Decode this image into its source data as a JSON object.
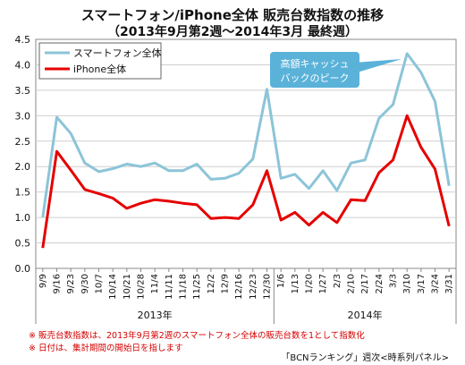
{
  "header": {
    "title": "スマートフォン/iPhone全体 販売台数指数の推移",
    "subtitle": "（2013年9月第2週〜2014年3月 最終週）"
  },
  "chart_data": {
    "type": "line",
    "categories": [
      "9/9",
      "9/16",
      "9/23",
      "9/30",
      "10/7",
      "10/14",
      "10/21",
      "10/28",
      "11/4",
      "11/11",
      "11/18",
      "11/25",
      "12/2",
      "12/9",
      "12/16",
      "12/23",
      "12/30",
      "1/6",
      "1/13",
      "1/20",
      "1/27",
      "2/3",
      "2/10",
      "2/17",
      "2/24",
      "3/3",
      "3/10",
      "3/17",
      "3/24",
      "3/31"
    ],
    "series": [
      {
        "name": "スマートフォン全体",
        "color": "#8cc4d8",
        "values": [
          1.0,
          2.97,
          2.65,
          2.07,
          1.9,
          1.96,
          2.05,
          2.0,
          2.07,
          1.92,
          1.92,
          2.05,
          1.75,
          1.77,
          1.87,
          2.15,
          3.52,
          1.77,
          1.85,
          1.57,
          1.92,
          1.53,
          2.07,
          2.13,
          2.95,
          3.22,
          4.22,
          3.85,
          3.28,
          1.62
        ]
      },
      {
        "name": "iPhone全体",
        "color": "#e60000",
        "values": [
          0.4,
          2.3,
          1.93,
          1.55,
          1.47,
          1.38,
          1.18,
          1.28,
          1.35,
          1.32,
          1.28,
          1.25,
          0.98,
          1.0,
          0.98,
          1.25,
          1.92,
          0.95,
          1.1,
          0.85,
          1.1,
          0.9,
          1.35,
          1.33,
          1.88,
          2.13,
          3.0,
          2.38,
          1.95,
          0.83
        ]
      }
    ],
    "ylim": [
      0,
      4.5
    ],
    "y_ticks": [
      "0.0",
      "0.5",
      "1.0",
      "1.5",
      "2.0",
      "2.5",
      "3.0",
      "3.5",
      "4.0",
      "4.5"
    ],
    "year_labels": [
      {
        "label": "2013年",
        "start": 0,
        "end": 16
      },
      {
        "label": "2014年",
        "start": 17,
        "end": 29
      }
    ],
    "annotation": {
      "line1": "高額キャッシュ",
      "line2": "バックのピーク",
      "color": "#5ab2d9",
      "target_index": 26
    },
    "legend_position": "top-left",
    "grid": true
  },
  "notes": {
    "line1": "※ 販売台数指数は、2013年9月第2週のスマートフォン全体の販売台数を1として指数化",
    "line2": "※ 日付は、集計期間の開始日を指します"
  },
  "credit": "「BCNランキング」週次<時系列パネル>"
}
